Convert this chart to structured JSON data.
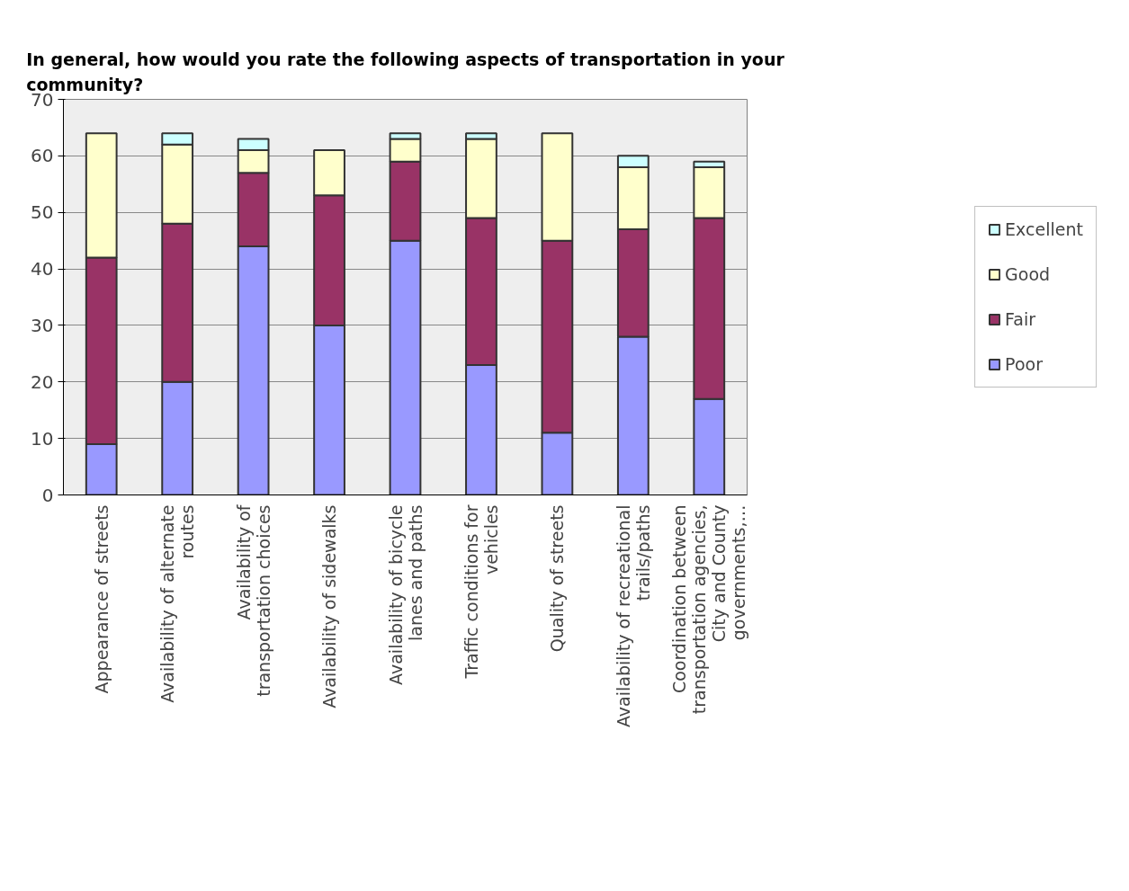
{
  "chart_data": {
    "type": "bar",
    "stacked": true,
    "title": "In general, how would you rate the following aspects of transportation in your community?",
    "categories": [
      "Appearance of streets",
      "Availability of alternate routes",
      "Availability of transportation choices",
      "Availability of sidewalks",
      "Availability of bicycle lanes and paths",
      "Traffic conditions for vehicles",
      "Quality of streets",
      "Availability of recreational trails/paths",
      "Coordination between transportation agencies, City and County governments,…"
    ],
    "series": [
      {
        "name": "Poor",
        "color": "#9999ff",
        "values": [
          9,
          20,
          44,
          30,
          45,
          23,
          11,
          28,
          17
        ]
      },
      {
        "name": "Fair",
        "color": "#993366",
        "values": [
          33,
          28,
          13,
          23,
          14,
          26,
          34,
          19,
          32
        ]
      },
      {
        "name": "Good",
        "color": "#ffffcc",
        "values": [
          22,
          14,
          4,
          8,
          4,
          14,
          19,
          11,
          9
        ]
      },
      {
        "name": "Excellent",
        "color": "#ccffff",
        "values": [
          0,
          2,
          2,
          0,
          1,
          1,
          0,
          2,
          1
        ]
      }
    ],
    "ylim": [
      0,
      70
    ],
    "yticks": [
      0,
      10,
      20,
      30,
      40,
      50,
      60,
      70
    ],
    "grid": "y",
    "legend": "right"
  }
}
